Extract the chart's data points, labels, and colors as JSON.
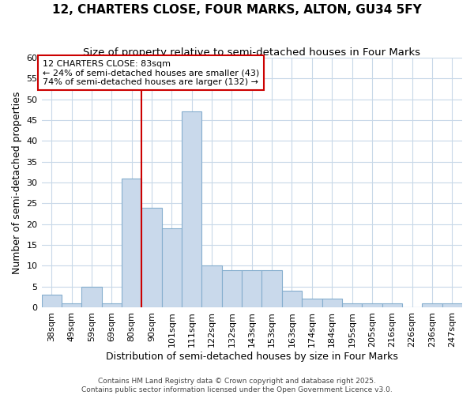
{
  "title": "12, CHARTERS CLOSE, FOUR MARKS, ALTON, GU34 5FY",
  "subtitle": "Size of property relative to semi-detached houses in Four Marks",
  "xlabel": "Distribution of semi-detached houses by size in Four Marks",
  "ylabel": "Number of semi-detached properties",
  "categories": [
    "38sqm",
    "49sqm",
    "59sqm",
    "69sqm",
    "80sqm",
    "90sqm",
    "101sqm",
    "111sqm",
    "122sqm",
    "132sqm",
    "143sqm",
    "153sqm",
    "163sqm",
    "174sqm",
    "184sqm",
    "195sqm",
    "205sqm",
    "216sqm",
    "226sqm",
    "236sqm",
    "247sqm"
  ],
  "values": [
    3,
    1,
    5,
    1,
    31,
    24,
    19,
    47,
    10,
    9,
    9,
    9,
    4,
    2,
    2,
    1,
    1,
    1,
    0,
    1,
    1
  ],
  "bar_color": "#c9d9eb",
  "bar_edge_color": "#85aece",
  "highlight_index": 4,
  "highlight_color": "#cc0000",
  "ylim": [
    0,
    60
  ],
  "yticks": [
    0,
    5,
    10,
    15,
    20,
    25,
    30,
    35,
    40,
    45,
    50,
    55,
    60
  ],
  "annotation_text": "12 CHARTERS CLOSE: 83sqm\n← 24% of semi-detached houses are smaller (43)\n74% of semi-detached houses are larger (132) →",
  "footer1": "Contains HM Land Registry data © Crown copyright and database right 2025.",
  "footer2": "Contains public sector information licensed under the Open Government Licence v3.0.",
  "background_color": "#ffffff",
  "grid_color": "#c8d8e8",
  "title_fontsize": 11,
  "subtitle_fontsize": 9.5,
  "axis_label_fontsize": 9,
  "tick_fontsize": 8,
  "annotation_fontsize": 8,
  "footer_fontsize": 6.5
}
